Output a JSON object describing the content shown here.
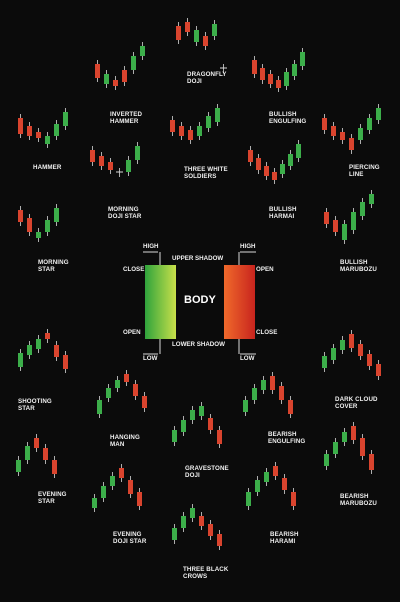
{
  "colors": {
    "background": "#0b0b0b",
    "bullish": "#3cae4a",
    "bearish": "#d9442e",
    "wick": "#d8d8d8",
    "text": "#f0f0f0"
  },
  "diagram": {
    "body_label": "BODY",
    "high_left": "HIGH",
    "close_left": "CLOSE",
    "open_left": "OPEN",
    "low_left": "LOW",
    "upper_shadow": "UPPER SHADOW",
    "lower_shadow": "LOWER SHADOW",
    "high_right": "HIGH",
    "open_right": "OPEN",
    "close_right": "CLOSE",
    "low_right": "LOW"
  },
  "patterns": [
    {
      "name": "dragonfly",
      "lines": [
        "DRAGONFLY",
        "DOJI"
      ],
      "candles": [
        "r",
        "r",
        "g",
        "r",
        "g",
        "d"
      ]
    },
    {
      "name": "inverted-hammer",
      "lines": [
        "INVERTED",
        "HAMMER"
      ],
      "candles": [
        "r",
        "g",
        "r",
        "r",
        "g",
        "g"
      ]
    },
    {
      "name": "bullish-engulfing",
      "lines": [
        "BULLISH",
        "ENGULFING"
      ],
      "candles": [
        "r",
        "r",
        "r",
        "r",
        "g",
        "g",
        "g"
      ]
    },
    {
      "name": "hammer",
      "lines": [
        "HAMMER"
      ],
      "candles": [
        "r",
        "r",
        "r",
        "g",
        "g",
        "g"
      ]
    },
    {
      "name": "three-white-soldiers",
      "lines": [
        "THREE WHITE",
        "SOLDIERS"
      ],
      "candles": [
        "r",
        "r",
        "r",
        "g",
        "g",
        "g"
      ]
    },
    {
      "name": "piercing-line",
      "lines": [
        "PIERCING",
        "LINE"
      ],
      "candles": [
        "r",
        "r",
        "r",
        "r",
        "g",
        "g",
        "g"
      ]
    },
    {
      "name": "morning-doji-star",
      "lines": [
        "MORNING",
        "DOJI STAR"
      ],
      "candles": [
        "r",
        "r",
        "r",
        "d",
        "g",
        "g"
      ]
    },
    {
      "name": "bullish-harmai",
      "lines": [
        "BULLISH",
        "HARMAI"
      ],
      "candles": [
        "r",
        "r",
        "r",
        "r",
        "g",
        "g",
        "g"
      ]
    },
    {
      "name": "morning-star",
      "lines": [
        "MORNING",
        "STAR"
      ],
      "candles": [
        "r",
        "r",
        "g",
        "g",
        "g"
      ]
    },
    {
      "name": "bullish-marubozu",
      "lines": [
        "BULLISH",
        "MARUBOZU"
      ],
      "candles": [
        "r",
        "r",
        "g",
        "g",
        "g",
        "g"
      ]
    },
    {
      "name": "shooting-star",
      "lines": [
        "SHOOTING",
        "STAR"
      ],
      "candles": [
        "g",
        "g",
        "g",
        "r",
        "r",
        "r"
      ]
    },
    {
      "name": "dark-cloud-cover",
      "lines": [
        "DARK CLOUD",
        "COVER"
      ],
      "candles": [
        "g",
        "g",
        "g",
        "r",
        "r",
        "r",
        "r"
      ]
    },
    {
      "name": "hanging-man",
      "lines": [
        "HANGING",
        "MAN"
      ],
      "candles": [
        "g",
        "g",
        "g",
        "r",
        "r",
        "r"
      ]
    },
    {
      "name": "bearish-engulfing",
      "lines": [
        "BEARISH",
        "ENGULFING"
      ],
      "candles": [
        "g",
        "g",
        "g",
        "r",
        "r",
        "r"
      ]
    },
    {
      "name": "gravestone",
      "lines": [
        "GRAVESTONE",
        "DOJI"
      ],
      "candles": [
        "g",
        "g",
        "g",
        "g",
        "r",
        "r"
      ]
    },
    {
      "name": "evening-star",
      "lines": [
        "EVENING",
        "STAR"
      ],
      "candles": [
        "g",
        "g",
        "r",
        "r",
        "r"
      ]
    },
    {
      "name": "bearish-marubozu",
      "lines": [
        "BEARISH",
        "MARUBOZU"
      ],
      "candles": [
        "g",
        "g",
        "g",
        "r",
        "r",
        "r"
      ]
    },
    {
      "name": "evening-doji-star",
      "lines": [
        "EVENING",
        "DOJI STAR"
      ],
      "candles": [
        "g",
        "g",
        "g",
        "r",
        "r",
        "r"
      ]
    },
    {
      "name": "bearish-harami",
      "lines": [
        "BEARISH",
        "HARAMI"
      ],
      "candles": [
        "g",
        "g",
        "g",
        "r",
        "r",
        "r"
      ]
    },
    {
      "name": "three-black-crows",
      "lines": [
        "THREE BLACK",
        "CROWS"
      ],
      "candles": [
        "g",
        "g",
        "g",
        "r",
        "r",
        "r"
      ]
    }
  ]
}
